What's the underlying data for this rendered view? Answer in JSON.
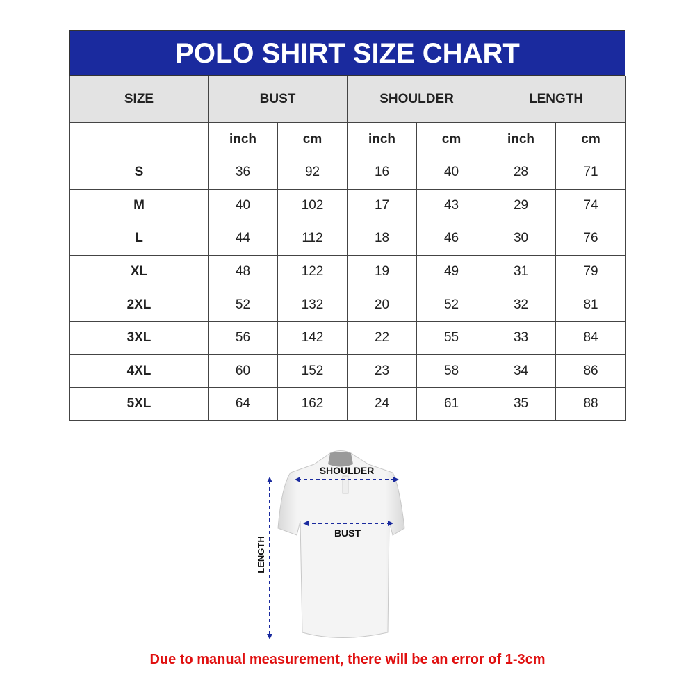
{
  "title": "POLO SHIRT SIZE CHART",
  "columns": [
    "SIZE",
    "BUST",
    "SHOULDER",
    "LENGTH"
  ],
  "units": [
    "inch",
    "cm",
    "inch",
    "cm",
    "inch",
    "cm"
  ],
  "rows": [
    {
      "size": "S",
      "values": [
        "36",
        "92",
        "16",
        "40",
        "28",
        "71"
      ]
    },
    {
      "size": "M",
      "values": [
        "40",
        "102",
        "17",
        "43",
        "29",
        "74"
      ]
    },
    {
      "size": "L",
      "values": [
        "44",
        "112",
        "18",
        "46",
        "30",
        "76"
      ]
    },
    {
      "size": "XL",
      "values": [
        "48",
        "122",
        "19",
        "49",
        "31",
        "79"
      ]
    },
    {
      "size": "2XL",
      "values": [
        "52",
        "132",
        "20",
        "52",
        "32",
        "81"
      ]
    },
    {
      "size": "3XL",
      "values": [
        "56",
        "142",
        "22",
        "55",
        "33",
        "84"
      ]
    },
    {
      "size": "4XL",
      "values": [
        "60",
        "152",
        "23",
        "58",
        "34",
        "86"
      ]
    },
    {
      "size": "5XL",
      "values": [
        "64",
        "162",
        "24",
        "61",
        "35",
        "88"
      ]
    }
  ],
  "diagram": {
    "shoulder": "SHOULDER",
    "bust": "BUST",
    "length": "LENGTH"
  },
  "note": "Due to manual measurement, there will be an error of 1-3cm",
  "colors": {
    "header": "#1a2a9e",
    "note": "#e01010",
    "arrow": "#1a2a9e"
  }
}
